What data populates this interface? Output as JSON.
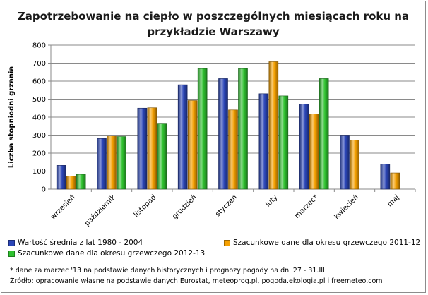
{
  "chart_data": {
    "type": "bar",
    "title_lines": [
      "Zapotrzebowanie na ciepło w poszczególnych miesiącach roku na",
      "przykładzie Warszawy"
    ],
    "ylabel": "Liczba stopniodni grzania",
    "xlabel": "",
    "ylim": [
      0,
      800
    ],
    "yticks": [
      "0",
      "100",
      "200",
      "300",
      "400",
      "500",
      "600",
      "700",
      "800"
    ],
    "categories": [
      "wrzesień",
      "październik",
      "listopad",
      "grudzień",
      "styczeń",
      "luty",
      "marzec*",
      "kwiecień",
      "maj"
    ],
    "series": [
      {
        "name": "Wartość średnia z lat 1980 - 2004",
        "color": "#2b46b8",
        "values": [
          132,
          281,
          450,
          580,
          614,
          530,
          472,
          300,
          140
        ]
      },
      {
        "name": "Szacunkowe dane dla okresu grzewczego 2011-12",
        "color": "#f5a000",
        "values": [
          72,
          296,
          452,
          492,
          440,
          708,
          418,
          272,
          90
        ]
      },
      {
        "name": "Szacunkowe dane dla okresu grzewczego 2012-13",
        "color": "#2fc22f",
        "values": [
          82,
          292,
          366,
          670,
          670,
          518,
          614,
          null,
          null
        ]
      }
    ],
    "grid": true,
    "legend_position": "bottom"
  },
  "footnote": "* dane za marzec  '13 na podstawie danych historycznych  i prognozy pogody na dni 27 - 31.III",
  "source": "Źródło:  opracowanie własne na podstawie danych Eurostat,  meteoprog.pl, pogoda.ekologia.pl i freemeteo.com"
}
